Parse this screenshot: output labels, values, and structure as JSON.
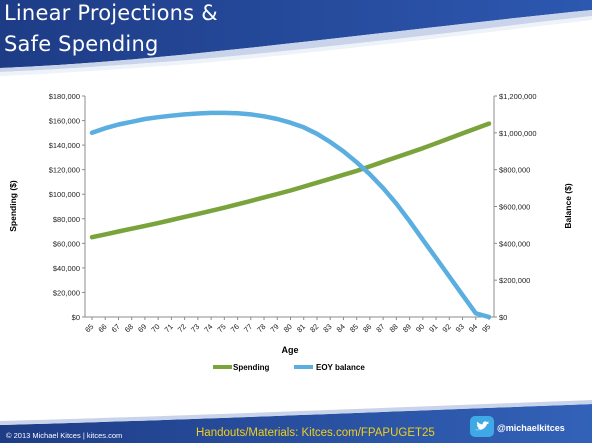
{
  "slide": {
    "title_line1": "Linear Projections &",
    "title_line2": "Safe Spending",
    "footer_left": "© 2013 Michael Kitces  |  kitces.com",
    "footer_center": "Handouts/Materials: Kitces.com/FPAPUGET25",
    "footer_handle": "@michaelkitces",
    "twitter_icon": "twitter-bird-icon"
  },
  "colors": {
    "header_blue": "#1f3f8a",
    "footer_blue": "#2a4f9c",
    "spending": "#7aa33b",
    "eoy_balance": "#5aaee0",
    "footer_link": "#f2cf1a"
  },
  "chart_data": {
    "type": "line",
    "xlabel": "Age",
    "ylabel": "Spending ($)",
    "y2label": "Balance ($)",
    "x": [
      65,
      66,
      67,
      68,
      69,
      70,
      71,
      72,
      73,
      74,
      75,
      76,
      77,
      78,
      79,
      80,
      81,
      82,
      83,
      84,
      85,
      86,
      87,
      88,
      89,
      90,
      91,
      92,
      93,
      94,
      95
    ],
    "ylim": [
      0,
      180000
    ],
    "y2lim": [
      0,
      1200000
    ],
    "yticks": [
      "$0",
      "$20,000",
      "$40,000",
      "$60,000",
      "$80,000",
      "$100,000",
      "$120,000",
      "$140,000",
      "$160,000",
      "$180,000"
    ],
    "y2ticks": [
      "$0",
      "$200,000",
      "$400,000",
      "$600,000",
      "$800,000",
      "$1,000,000",
      "$1,200,000"
    ],
    "legend_position": "bottom",
    "grid": false,
    "series": [
      {
        "name": "Spending",
        "axis": "left",
        "values": [
          65000,
          67300,
          69600,
          71900,
          74200,
          76500,
          79000,
          81500,
          84000,
          86500,
          89000,
          91800,
          94600,
          97400,
          100200,
          103000,
          106200,
          109400,
          112600,
          115800,
          119000,
          122700,
          126400,
          130100,
          133800,
          137500,
          141500,
          145500,
          149500,
          153500,
          157500
        ]
      },
      {
        "name": "EOY balance",
        "axis": "right",
        "values": [
          1000000,
          1025000,
          1045000,
          1060000,
          1075000,
          1085000,
          1093000,
          1100000,
          1105000,
          1108000,
          1108000,
          1106000,
          1100000,
          1090000,
          1075000,
          1055000,
          1030000,
          995000,
          950000,
          900000,
          840000,
          775000,
          700000,
          615000,
          520000,
          420000,
          320000,
          220000,
          120000,
          20000,
          0
        ]
      }
    ]
  }
}
